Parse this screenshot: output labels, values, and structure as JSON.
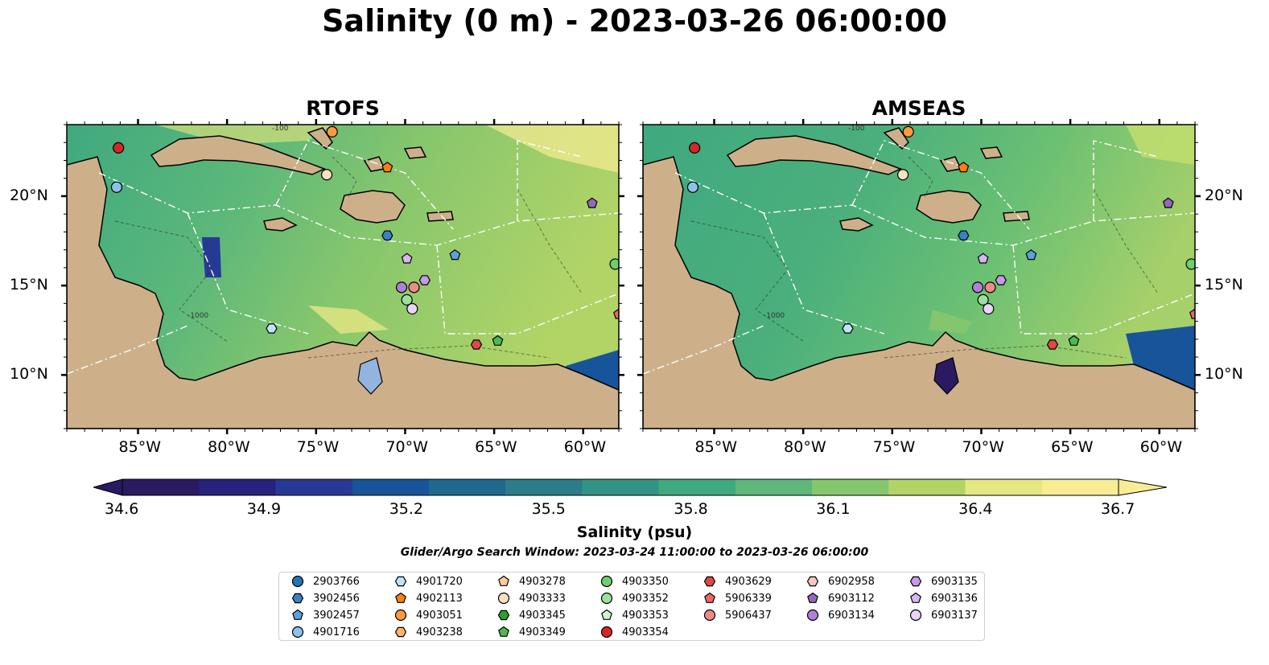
{
  "title": "Salinity (0 m) - 2023-03-26 06:00:00",
  "panels": [
    {
      "title": "RTOFS"
    },
    {
      "title": "AMSEAS"
    }
  ],
  "map": {
    "lon_range": [
      -89,
      -58
    ],
    "lat_range": [
      7,
      24
    ],
    "lon_ticks": [
      "85°W",
      "80°W",
      "75°W",
      "70°W",
      "65°W",
      "60°W"
    ],
    "lat_ticks": [
      "20°N",
      "15°N",
      "10°N"
    ],
    "land_color": "#cdb08a",
    "ocean_color_pacific": "#94b4e0",
    "bathymetry_labels": [
      "-100",
      "-1000"
    ]
  },
  "colorbar": {
    "label": "Salinity (psu)",
    "tick_labels": [
      "34.6",
      "34.9",
      "35.2",
      "35.5",
      "35.8",
      "36.1",
      "36.4",
      "36.7"
    ],
    "vmin": 34.6,
    "vmax": 36.7,
    "colors": [
      "#2a1a62",
      "#27227d",
      "#263a95",
      "#17549a",
      "#1e6a8f",
      "#2b7e88",
      "#339485",
      "#3fa97f",
      "#5db87a",
      "#86c66d",
      "#b2d467",
      "#e6e683",
      "#f8ec94"
    ]
  },
  "search_window": "Glider/Argo Search Window: 2023-03-24 11:00:00 to 2023-03-26 06:00:00",
  "legend": [
    {
      "id": "2903766",
      "marker": "circle",
      "color": "#1f77b4",
      "lon": null,
      "lat": null
    },
    {
      "id": "3902456",
      "marker": "hexagon",
      "color": "#3a80c4",
      "lon": -71,
      "lat": 17.8
    },
    {
      "id": "3902457",
      "marker": "pentagon",
      "color": "#5aa1e0",
      "lon": -67.2,
      "lat": 16.7
    },
    {
      "id": "4901716",
      "marker": "circle",
      "color": "#8cc2ea",
      "lon": -86.2,
      "lat": 20.5
    },
    {
      "id": "4901720",
      "marker": "hexagon",
      "color": "#bfe3f7",
      "lon": -77.5,
      "lat": 12.6
    },
    {
      "id": "4902113",
      "marker": "pentagon",
      "color": "#ff7f0e",
      "lon": -71,
      "lat": 21.6
    },
    {
      "id": "4903051",
      "marker": "circle",
      "color": "#ff9a3c",
      "lon": -74.1,
      "lat": 23.6
    },
    {
      "id": "4903238",
      "marker": "hexagon",
      "color": "#ffb366",
      "lon": null,
      "lat": null
    },
    {
      "id": "4903278",
      "marker": "pentagon",
      "color": "#ffcc99",
      "lon": null,
      "lat": null
    },
    {
      "id": "4903333",
      "marker": "circle",
      "color": "#ffe0c2",
      "lon": -74.4,
      "lat": 21.2
    },
    {
      "id": "4903345",
      "marker": "hexagon",
      "color": "#2ca02c",
      "lon": null,
      "lat": null
    },
    {
      "id": "4903349",
      "marker": "pentagon",
      "color": "#4cbb4c",
      "lon": -64.8,
      "lat": 11.9
    },
    {
      "id": "4903350",
      "marker": "circle",
      "color": "#6fcf6f",
      "lon": -58.2,
      "lat": 16.2
    },
    {
      "id": "4903352",
      "marker": "circle",
      "color": "#9de09d",
      "lon": -69.9,
      "lat": 14.2
    },
    {
      "id": "4903353",
      "marker": "pentagon",
      "color": "#cdf5cd",
      "lon": null,
      "lat": null
    },
    {
      "id": "4903354",
      "marker": "circle",
      "color": "#d62728",
      "lon": -86.1,
      "lat": 22.7
    },
    {
      "id": "4903629",
      "marker": "hexagon",
      "color": "#e04848",
      "lon": -66,
      "lat": 11.7
    },
    {
      "id": "5906339",
      "marker": "pentagon",
      "color": "#ee6666",
      "lon": -58,
      "lat": 13.4
    },
    {
      "id": "5906437",
      "marker": "circle",
      "color": "#f08a8a",
      "lon": -69.5,
      "lat": 14.9
    },
    {
      "id": "6902958",
      "marker": "hexagon",
      "color": "#f8c4c4",
      "lon": null,
      "lat": null
    },
    {
      "id": "6903112",
      "marker": "pentagon",
      "color": "#9467bd",
      "lon": -59.5,
      "lat": 19.6
    },
    {
      "id": "6903134",
      "marker": "circle",
      "color": "#b07fd8",
      "lon": -70.2,
      "lat": 14.9
    },
    {
      "id": "6903135",
      "marker": "hexagon",
      "color": "#c79ae8",
      "lon": -68.9,
      "lat": 15.3
    },
    {
      "id": "6903136",
      "marker": "pentagon",
      "color": "#d9b5f1",
      "lon": -69.9,
      "lat": 16.5
    },
    {
      "id": "6903137",
      "marker": "circle",
      "color": "#ead4fa",
      "lon": -69.6,
      "lat": 13.7
    }
  ]
}
